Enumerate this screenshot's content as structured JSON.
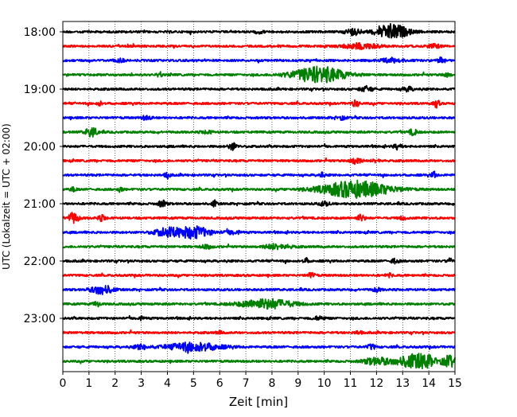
{
  "chart_data": {
    "type": "line",
    "title": "",
    "xlabel": "Zeit  [min]",
    "ylabel": "UTC (Lokalzeit = UTC + 02:00)",
    "xlim": [
      0,
      15
    ],
    "x_ticks": [
      0,
      1,
      2,
      3,
      4,
      5,
      6,
      7,
      8,
      9,
      10,
      11,
      12,
      13,
      14,
      15
    ],
    "x_grid": true,
    "x_grid_style": "dotted",
    "y_tick_labels": [
      "18:00",
      "19:00",
      "20:00",
      "21:00",
      "22:00",
      "23:00"
    ],
    "trace_interval_minutes": 15,
    "colors_cycle": [
      "#000000",
      "#ff0000",
      "#0000ff",
      "#008000"
    ],
    "traces": [
      {
        "start": "18:00",
        "color": "#000000",
        "events": [
          {
            "t": 12.6,
            "amp": 1.0,
            "dur": 1.2
          },
          {
            "t": 11.1,
            "amp": 0.4,
            "dur": 0.6
          },
          {
            "t": 7.5,
            "amp": 0.2,
            "dur": 0.3
          }
        ]
      },
      {
        "start": "18:15",
        "color": "#ff0000",
        "events": [
          {
            "t": 11.4,
            "amp": 0.35,
            "dur": 1.4
          },
          {
            "t": 14.2,
            "amp": 0.25,
            "dur": 0.5
          }
        ]
      },
      {
        "start": "18:30",
        "color": "#0000ff",
        "events": [
          {
            "t": 12.6,
            "amp": 0.3,
            "dur": 0.8
          },
          {
            "t": 14.5,
            "amp": 0.4,
            "dur": 0.3
          },
          {
            "t": 2.2,
            "amp": 0.2,
            "dur": 0.3
          }
        ]
      },
      {
        "start": "18:45",
        "color": "#008000",
        "events": [
          {
            "t": 9.8,
            "amp": 1.1,
            "dur": 2.0
          },
          {
            "t": 3.7,
            "amp": 0.35,
            "dur": 0.2
          },
          {
            "t": 14.7,
            "amp": 0.3,
            "dur": 0.3
          }
        ]
      },
      {
        "start": "19:00",
        "color": "#000000",
        "events": [
          {
            "t": 11.6,
            "amp": 0.35,
            "dur": 0.5
          },
          {
            "t": 13.2,
            "amp": 0.3,
            "dur": 0.4
          }
        ]
      },
      {
        "start": "19:15",
        "color": "#ff0000",
        "events": [
          {
            "t": 1.4,
            "amp": 0.3,
            "dur": 0.2
          },
          {
            "t": 11.2,
            "amp": 0.4,
            "dur": 0.3
          },
          {
            "t": 14.3,
            "amp": 0.55,
            "dur": 0.2
          }
        ]
      },
      {
        "start": "19:30",
        "color": "#0000ff",
        "events": [
          {
            "t": 3.2,
            "amp": 0.25,
            "dur": 0.4
          },
          {
            "t": 10.6,
            "amp": 0.25,
            "dur": 0.4
          }
        ]
      },
      {
        "start": "19:45",
        "color": "#008000",
        "events": [
          {
            "t": 1.1,
            "amp": 0.55,
            "dur": 0.5
          },
          {
            "t": 13.4,
            "amp": 0.4,
            "dur": 0.3
          },
          {
            "t": 5.5,
            "amp": 0.2,
            "dur": 0.4
          }
        ]
      },
      {
        "start": "20:00",
        "color": "#000000",
        "events": [
          {
            "t": 6.5,
            "amp": 0.5,
            "dur": 0.3
          },
          {
            "t": 12.8,
            "amp": 0.35,
            "dur": 0.3
          }
        ]
      },
      {
        "start": "20:15",
        "color": "#ff0000",
        "events": [
          {
            "t": 11.2,
            "amp": 0.5,
            "dur": 0.4
          },
          {
            "t": 12.0,
            "amp": 0.25,
            "dur": 0.3
          }
        ]
      },
      {
        "start": "20:30",
        "color": "#0000ff",
        "events": [
          {
            "t": 4.0,
            "amp": 0.4,
            "dur": 0.2
          },
          {
            "t": 9.9,
            "amp": 0.35,
            "dur": 0.2
          },
          {
            "t": 14.2,
            "amp": 0.4,
            "dur": 0.2
          }
        ]
      },
      {
        "start": "20:45",
        "color": "#008000",
        "events": [
          {
            "t": 11.2,
            "amp": 1.15,
            "dur": 2.6
          },
          {
            "t": 0.4,
            "amp": 0.3,
            "dur": 0.2
          },
          {
            "t": 2.2,
            "amp": 0.3,
            "dur": 0.2
          }
        ]
      },
      {
        "start": "21:00",
        "color": "#000000",
        "events": [
          {
            "t": 3.8,
            "amp": 0.45,
            "dur": 0.3
          },
          {
            "t": 5.8,
            "amp": 0.4,
            "dur": 0.2
          },
          {
            "t": 10.0,
            "amp": 0.25,
            "dur": 0.4
          }
        ]
      },
      {
        "start": "21:15",
        "color": "#ff0000",
        "events": [
          {
            "t": 0.4,
            "amp": 0.7,
            "dur": 0.4
          },
          {
            "t": 1.5,
            "amp": 0.35,
            "dur": 0.3
          },
          {
            "t": 11.4,
            "amp": 0.45,
            "dur": 0.3
          },
          {
            "t": 13.0,
            "amp": 0.2,
            "dur": 0.3
          }
        ]
      },
      {
        "start": "21:30",
        "color": "#0000ff",
        "events": [
          {
            "t": 4.0,
            "amp": 0.55,
            "dur": 1.0
          },
          {
            "t": 5.0,
            "amp": 0.8,
            "dur": 1.2
          },
          {
            "t": 6.5,
            "amp": 0.25,
            "dur": 0.6
          }
        ]
      },
      {
        "start": "21:45",
        "color": "#008000",
        "events": [
          {
            "t": 8.2,
            "amp": 0.35,
            "dur": 1.0
          },
          {
            "t": 5.5,
            "amp": 0.25,
            "dur": 0.4
          }
        ]
      },
      {
        "start": "22:00",
        "color": "#000000",
        "events": [
          {
            "t": 9.3,
            "amp": 0.35,
            "dur": 0.2
          },
          {
            "t": 12.7,
            "amp": 0.3,
            "dur": 0.3
          },
          {
            "t": 14.8,
            "amp": 0.3,
            "dur": 0.2
          }
        ]
      },
      {
        "start": "22:15",
        "color": "#ff0000",
        "events": [
          {
            "t": 9.5,
            "amp": 0.3,
            "dur": 0.3
          },
          {
            "t": 12.5,
            "amp": 0.2,
            "dur": 0.3
          }
        ]
      },
      {
        "start": "22:30",
        "color": "#0000ff",
        "events": [
          {
            "t": 1.5,
            "amp": 0.6,
            "dur": 0.8
          },
          {
            "t": 12.0,
            "amp": 0.25,
            "dur": 0.3
          }
        ]
      },
      {
        "start": "22:45",
        "color": "#008000",
        "events": [
          {
            "t": 7.8,
            "amp": 0.65,
            "dur": 2.0
          },
          {
            "t": 1.3,
            "amp": 0.3,
            "dur": 0.3
          }
        ]
      },
      {
        "start": "23:00",
        "color": "#000000",
        "events": [
          {
            "t": 9.8,
            "amp": 0.25,
            "dur": 0.4
          },
          {
            "t": 3.0,
            "amp": 0.2,
            "dur": 0.3
          }
        ]
      },
      {
        "start": "23:15",
        "color": "#ff0000",
        "events": [
          {
            "t": 11.3,
            "amp": 0.2,
            "dur": 0.3
          },
          {
            "t": 6.0,
            "amp": 0.15,
            "dur": 0.3
          }
        ]
      },
      {
        "start": "23:30",
        "color": "#0000ff",
        "events": [
          {
            "t": 5.0,
            "amp": 0.6,
            "dur": 2.0
          },
          {
            "t": 3.0,
            "amp": 0.3,
            "dur": 0.5
          },
          {
            "t": 11.8,
            "amp": 0.35,
            "dur": 0.3
          }
        ]
      },
      {
        "start": "23:45",
        "color": "#008000",
        "events": [
          {
            "t": 13.6,
            "amp": 1.0,
            "dur": 1.6
          },
          {
            "t": 12.0,
            "amp": 0.45,
            "dur": 1.0
          },
          {
            "t": 14.8,
            "amp": 0.7,
            "dur": 0.4
          }
        ]
      }
    ]
  }
}
